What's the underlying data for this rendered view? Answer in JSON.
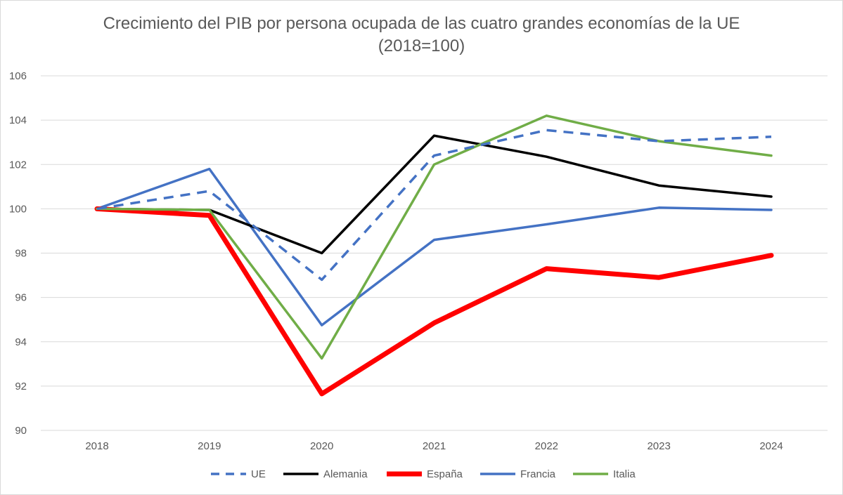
{
  "chart_data": {
    "type": "line",
    "title_line1": "Crecimiento del PIB por persona ocupada de las cuatro grandes economías de la UE",
    "title_line2": "(2018=100)",
    "xlabel": "",
    "ylabel": "",
    "x": [
      "2018",
      "2019",
      "2020",
      "2021",
      "2022",
      "2023",
      "2024"
    ],
    "ylim": [
      90,
      106
    ],
    "yticks": [
      "90",
      "92",
      "94",
      "96",
      "98",
      "100",
      "102",
      "104",
      "106"
    ],
    "grid": "horizontal",
    "legend_position": "bottom",
    "series": [
      {
        "name": "UE",
        "color": "#4472c4",
        "style": "dashed",
        "values": [
          100,
          100.8,
          96.8,
          102.4,
          103.55,
          103.05,
          103.25
        ]
      },
      {
        "name": "Alemania",
        "color": "#000000",
        "style": "solid",
        "values": [
          100,
          99.95,
          98.0,
          103.3,
          102.35,
          101.05,
          100.55
        ]
      },
      {
        "name": "España",
        "color": "#ff0000",
        "style": "thick",
        "values": [
          100,
          99.7,
          91.65,
          94.85,
          97.3,
          96.9,
          97.9
        ]
      },
      {
        "name": "Francia",
        "color": "#4472c4",
        "style": "solid",
        "values": [
          100,
          101.8,
          94.75,
          98.6,
          99.3,
          100.05,
          99.95
        ]
      },
      {
        "name": "Italia",
        "color": "#70ad47",
        "style": "solid",
        "values": [
          100,
          99.95,
          93.25,
          102.0,
          104.2,
          103.05,
          102.4
        ]
      }
    ]
  }
}
